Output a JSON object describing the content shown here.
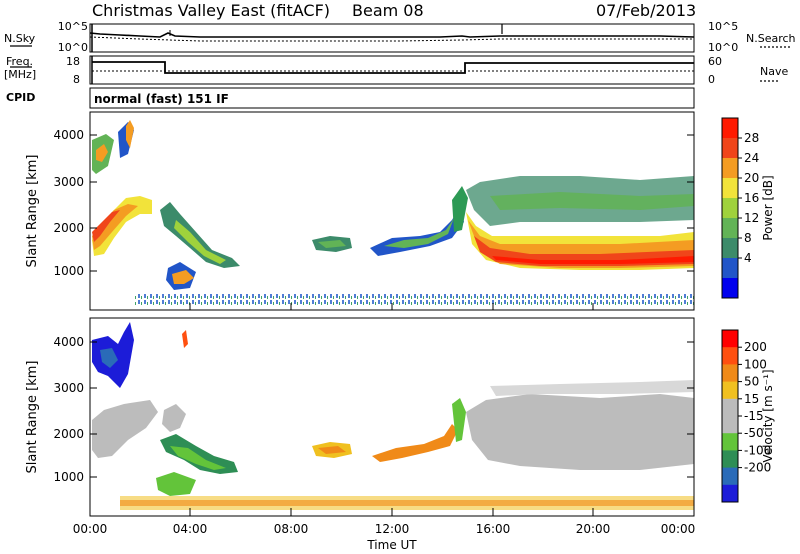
{
  "header": {
    "title": "Christmas Valley East (fitACF)",
    "beam": "Beam 08",
    "date": "07/Feb/2013"
  },
  "params": {
    "nsky_label": "N.Sky",
    "nsearch_label": "N.Search",
    "freq_label_line1": "Freq.",
    "freq_label_line2": "[MHz]",
    "nave_label": "Nave",
    "cpid_label": "CPID",
    "cpid_text": "normal (fast) 151 IF",
    "noise_ticks": [
      "10^5",
      "10^0"
    ],
    "freq_ticks": [
      "18",
      "8"
    ],
    "nave_ticks": [
      "60",
      "0"
    ]
  },
  "chart_data": [
    {
      "type": "heatmap",
      "name": "power",
      "ylabel": "Slant Range [km]",
      "xlabel": "",
      "ylim": [
        180,
        4500
      ],
      "yticks": [
        "4000",
        "3000",
        "2000",
        "1000"
      ],
      "colorbar_label": "Power [dB]",
      "colorbar_ticks": [
        "28",
        "24",
        "20",
        "16",
        "12",
        "8",
        "4"
      ],
      "colorbar_colors": [
        "#0000ee",
        "#2155c8",
        "#3c8b6a",
        "#62b356",
        "#9fd23c",
        "#f2e33a",
        "#f49c22",
        "#f0451a",
        "#ff1a00"
      ],
      "grid": false
    },
    {
      "type": "heatmap",
      "name": "velocity",
      "ylabel": "Slant Range [km]",
      "xlabel": "Time UT",
      "ylim": [
        180,
        4500
      ],
      "yticks": [
        "4000",
        "3000",
        "2000",
        "1000"
      ],
      "xticks": [
        "00:00",
        "04:00",
        "08:00",
        "12:00",
        "16:00",
        "20:00",
        "00:00"
      ],
      "colorbar_label": "Velocity [m s⁻¹]",
      "colorbar_ticks": [
        "200",
        "100",
        "50",
        "15",
        "-15",
        "-50",
        "-100",
        "-200"
      ],
      "colorbar_colors": [
        "#1c1cd8",
        "#2a6bb8",
        "#2e8e55",
        "#63c43a",
        "#bcbcbc",
        "#bcbcbc",
        "#f0c020",
        "#f08a18",
        "#ff5010",
        "#ff0000"
      ],
      "grid": false
    }
  ]
}
